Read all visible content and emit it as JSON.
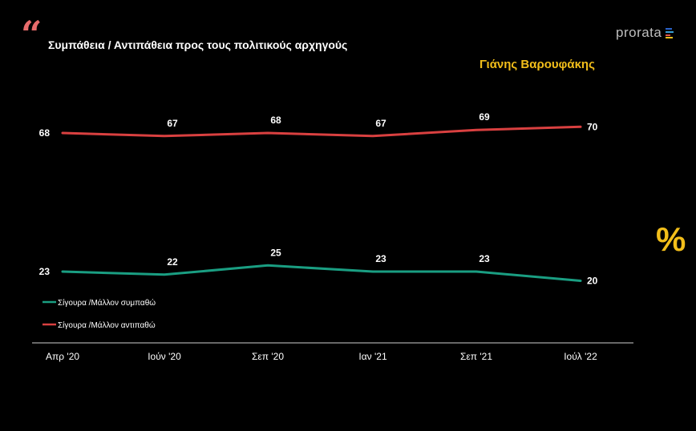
{
  "header": {
    "quote_mark": "“",
    "title": "Συμπάθεια / Αντιπάθεια προς τους πολιτικούς αρχηγούς",
    "subtitle": "Γιάνης Βαρουφάκης",
    "logo_text": "prorata",
    "percent_symbol": "%"
  },
  "colors": {
    "background": "#000000",
    "sympathy": "#1a9e82",
    "antipathy": "#d94040",
    "accent": "#f2be1a",
    "quote": "#e86b6b",
    "axis": "#d0d0d0"
  },
  "chart_data": {
    "type": "line",
    "title": "Συμπάθεια / Αντιπάθεια προς τους πολιτικούς αρχηγούς",
    "subtitle": "Γιάνης Βαρουφάκης",
    "categories": [
      "Απρ '20",
      "Ιούν '20",
      "Σεπ '20",
      "Ιαν '21",
      "Σεπ '21",
      "Ιούλ '22"
    ],
    "series": [
      {
        "name": "Σίγουρα /Μάλλον συμπαθώ",
        "color": "#1a9e82",
        "values": [
          23,
          22,
          25,
          23,
          23,
          20
        ]
      },
      {
        "name": "Σίγουρα /Μάλλον αντιπαθώ",
        "color": "#d94040",
        "values": [
          68,
          67,
          68,
          67,
          69,
          70
        ]
      }
    ],
    "xlabel": "",
    "ylabel": "%",
    "ylim": [
      0,
      100
    ],
    "grid": false,
    "legend": "bottom-left"
  }
}
